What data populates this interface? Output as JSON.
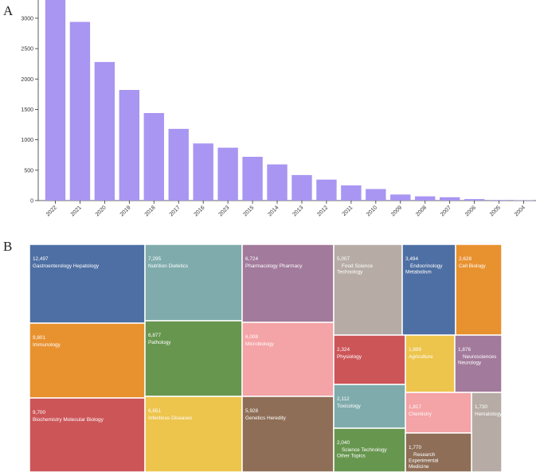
{
  "panel_labels": {
    "a": "A",
    "b": "B"
  },
  "chart_data": [
    {
      "type": "bar",
      "title": "",
      "xlabel": "",
      "ylabel": "",
      "ylim": [
        0,
        3300
      ],
      "yticks": [
        0,
        500,
        1000,
        1500,
        2000,
        2500,
        3000
      ],
      "bar_color": "#a995f2",
      "categories": [
        "2022",
        "2021",
        "2020",
        "2019",
        "2018",
        "2017",
        "2016",
        "2023",
        "2015",
        "2014",
        "2013",
        "2012",
        "2011",
        "2010",
        "2009",
        "2008",
        "2007",
        "2006",
        "2005",
        "2004"
      ],
      "values": [
        3320,
        2940,
        2280,
        1820,
        1440,
        1180,
        940,
        870,
        720,
        595,
        420,
        345,
        250,
        190,
        100,
        70,
        55,
        25,
        10,
        5
      ]
    },
    {
      "type": "treemap",
      "title": "",
      "tiles": [
        {
          "value": "12,497",
          "label": [
            "Gastroenterology Hepatology"
          ],
          "color": "#4e6fa3"
        },
        {
          "value": "9,801",
          "label": [
            "Immunology"
          ],
          "color": "#e8912f"
        },
        {
          "value": "9,700",
          "label": [
            "Biochemistry Molecular Biology"
          ],
          "color": "#cc5558"
        },
        {
          "value": "7,295",
          "label": [
            "Nutrition Dietetics"
          ],
          "color": "#7fabac"
        },
        {
          "value": "6,877",
          "label": [
            "Pathology"
          ],
          "color": "#67964f"
        },
        {
          "value": "6,651",
          "label": [
            "Infectious Diseases"
          ],
          "color": "#edc44c"
        },
        {
          "value": "6,724",
          "label": [
            "Pharmacology Pharmacy"
          ],
          "color": "#a27a9b"
        },
        {
          "value": "6,008",
          "label": [
            "Microbiology"
          ],
          "color": "#f4a3a6"
        },
        {
          "value": "5,928",
          "label": [
            "Genetics Heredity"
          ],
          "color": "#8e6e57"
        },
        {
          "value": "5,007",
          "label": [
            "Food Science",
            "Technology"
          ],
          "color": "#b6aca5"
        },
        {
          "value": "3,494",
          "label": [
            "Endocrinology",
            "Metabolism"
          ],
          "color": "#4e6fa3"
        },
        {
          "value": "2,628",
          "label": [
            "Cell Biology"
          ],
          "color": "#e8912f"
        },
        {
          "value": "2,324",
          "label": [
            "Physiology"
          ],
          "color": "#cc5558"
        },
        {
          "value": "1,899",
          "label": [
            "Agriculture"
          ],
          "color": "#edc44c"
        },
        {
          "value": "1,876",
          "label": [
            "Neurosciences",
            "Neurology"
          ],
          "color": "#a27a9b"
        },
        {
          "value": "2,112",
          "label": [
            "Toxicology"
          ],
          "color": "#7fabac"
        },
        {
          "value": "1,817",
          "label": [
            "Chemistry"
          ],
          "color": "#f4a3a6"
        },
        {
          "value": "1,730",
          "label": [
            "Hematology"
          ],
          "color": "#b6aca5"
        },
        {
          "value": "2,040",
          "label": [
            "Science Technology",
            "Other Topics"
          ],
          "color": "#67964f"
        },
        {
          "value": "1,770",
          "label": [
            "Research",
            "Experimental",
            "Medicine"
          ],
          "color": "#8e6e57"
        }
      ]
    }
  ]
}
